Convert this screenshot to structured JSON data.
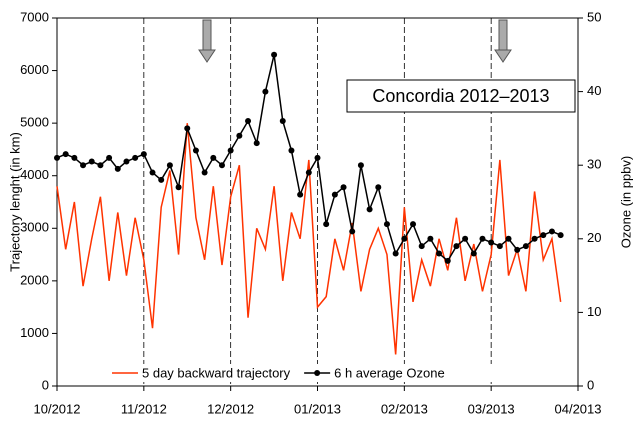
{
  "chart_data": {
    "type": "line",
    "annotation": "Concordia 2012–2013",
    "y_label": "Trajectory lenght (in km)",
    "y2_label": "Ozone (in ppbv)",
    "x": [
      0,
      0.1,
      0.2,
      0.3,
      0.4,
      0.5,
      0.6,
      0.7,
      0.8,
      0.9,
      1.0,
      1.1,
      1.2,
      1.3,
      1.4,
      1.5,
      1.6,
      1.7,
      1.8,
      1.9,
      2.0,
      2.1,
      2.2,
      2.3,
      2.4,
      2.5,
      2.6,
      2.7,
      2.8,
      2.9,
      3.0,
      3.1,
      3.2,
      3.3,
      3.4,
      3.5,
      3.6,
      3.7,
      3.8,
      3.9,
      4.0,
      4.1,
      4.2,
      4.3,
      4.4,
      4.5,
      4.6,
      4.7,
      4.8,
      4.9,
      5.0,
      5.1,
      5.2,
      5.3,
      5.4,
      5.5,
      5.6,
      5.7,
      5.8
    ],
    "series": [
      {
        "name": "5 day backward trajectory",
        "color": "#ff3300",
        "axis": "y",
        "values": [
          3800,
          2600,
          3500,
          1900,
          2800,
          3600,
          2000,
          3300,
          2100,
          3200,
          2400,
          1100,
          3400,
          4100,
          2500,
          5000,
          3200,
          2400,
          3800,
          2300,
          3600,
          4200,
          1300,
          3000,
          2600,
          3800,
          2000,
          3300,
          2800,
          4300,
          1500,
          1700,
          2800,
          2200,
          3100,
          1800,
          2600,
          3000,
          2500,
          600,
          3400,
          1600,
          2400,
          1900,
          2800,
          2200,
          3200,
          2000,
          2700,
          1800,
          2500,
          4300,
          2100,
          2600,
          1800,
          3700,
          2400,
          2800,
          1600
        ]
      },
      {
        "name": "6 h average Ozone",
        "color": "#000000",
        "axis": "y2",
        "values": [
          31,
          31.5,
          31,
          30,
          30.5,
          30,
          31,
          29.5,
          30.5,
          31,
          31.5,
          29,
          28,
          30,
          27,
          35,
          32,
          29,
          31,
          30,
          32,
          34,
          36,
          33,
          40,
          45,
          36,
          32,
          26,
          29,
          31,
          22,
          26,
          27,
          21,
          30,
          24,
          27,
          22,
          18,
          20,
          22,
          19,
          20,
          18,
          17,
          19,
          20,
          18,
          20,
          19.5,
          19,
          20,
          18.5,
          19,
          20,
          20.5,
          21,
          20.5
        ]
      }
    ],
    "xlim": [
      0,
      6
    ],
    "xticks": [
      {
        "value": 0,
        "label": "10/2012"
      },
      {
        "value": 1,
        "label": "11/2012"
      },
      {
        "value": 2,
        "label": "12/2012"
      },
      {
        "value": 3,
        "label": "01/2013"
      },
      {
        "value": 4,
        "label": "02/2013"
      },
      {
        "value": 5,
        "label": "03/2013"
      },
      {
        "value": 6,
        "label": "04/2013"
      }
    ],
    "ylim": [
      0,
      7000
    ],
    "yticks": [
      0,
      1000,
      2000,
      3000,
      4000,
      5000,
      6000,
      7000
    ],
    "y2lim": [
      0,
      50
    ],
    "y2ticks": [
      0,
      10,
      20,
      30,
      40,
      50
    ],
    "grid": "x",
    "legend": "bottom"
  }
}
